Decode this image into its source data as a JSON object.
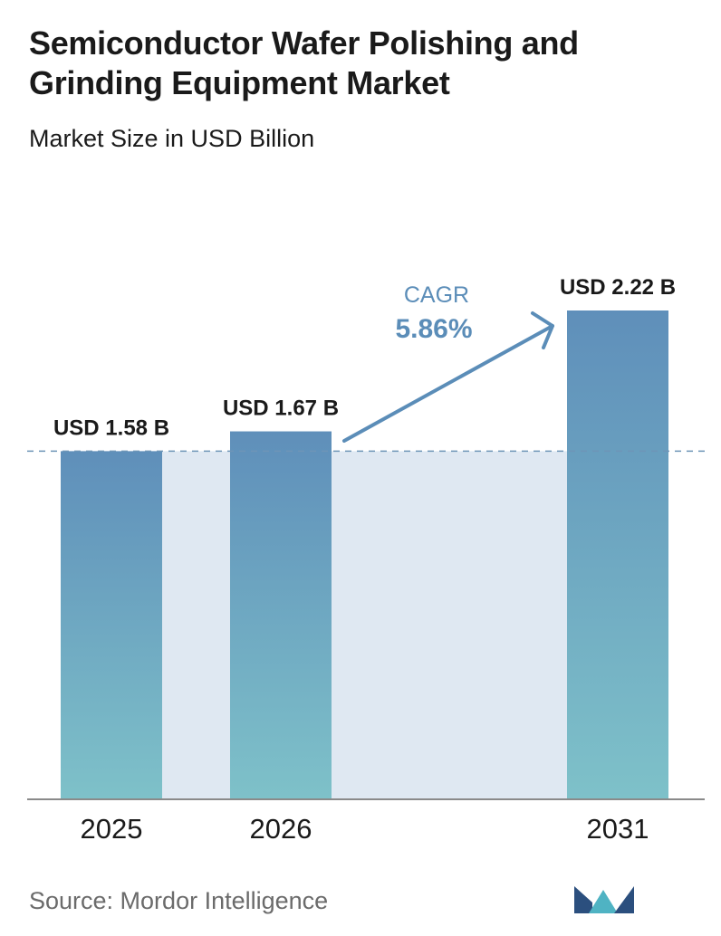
{
  "header": {
    "title_line1": "Semiconductor Wafer Polishing and",
    "title_line2": "Grinding Equipment Market",
    "subtitle": "Market Size in USD Billion"
  },
  "chart_data": {
    "type": "bar",
    "title": "Semiconductor Wafer Polishing and Grinding Equipment Market",
    "subtitle": "Market Size in USD Billion",
    "categories": [
      "2025",
      "2026",
      "2031"
    ],
    "values": [
      1.58,
      1.67,
      2.22
    ],
    "value_labels": [
      "USD 1.58 B",
      "USD 1.67 B",
      "USD 2.22 B"
    ],
    "annotation": {
      "label": "CAGR",
      "value": "5.86%"
    },
    "reference_line": 1.58,
    "ylim": [
      0,
      2.22
    ],
    "grid": false,
    "legend": "none"
  },
  "footer": {
    "source": "Source:  Mordor Intelligence"
  },
  "colors": {
    "bar_top": "#5f8fba",
    "bar_bottom": "#7ec1c9",
    "band": "#dfe8f2",
    "reference_line": "#6e95b7",
    "arrow": "#5b8db8",
    "axis": "#8a8a8a",
    "logo_dark": "#2b4f7e",
    "logo_teal": "#4fb3c3"
  }
}
